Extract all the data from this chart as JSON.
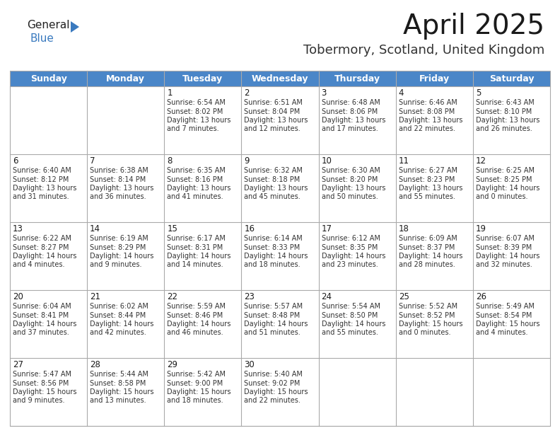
{
  "title": "April 2025",
  "subtitle": "Tobermory, Scotland, United Kingdom",
  "header_color": "#4a86c8",
  "header_text_color": "#ffffff",
  "background_color": "#ffffff",
  "grid_line_color": "#aaaaaa",
  "cell_bg_color": "#ffffff",
  "day_names": [
    "Sunday",
    "Monday",
    "Tuesday",
    "Wednesday",
    "Thursday",
    "Friday",
    "Saturday"
  ],
  "title_fontsize": 28,
  "subtitle_fontsize": 13,
  "header_fontsize": 9,
  "day_num_fontsize": 8.5,
  "cell_fontsize": 7,
  "logo_general_color": "#222222",
  "logo_blue_color": "#3a7abf",
  "logo_triangle_color": "#3a7abf",
  "days": [
    {
      "day": 1,
      "col": 2,
      "row": 0,
      "sunrise": "6:54 AM",
      "sunset": "8:02 PM",
      "daylight": "13 hours and 7 minutes."
    },
    {
      "day": 2,
      "col": 3,
      "row": 0,
      "sunrise": "6:51 AM",
      "sunset": "8:04 PM",
      "daylight": "13 hours and 12 minutes."
    },
    {
      "day": 3,
      "col": 4,
      "row": 0,
      "sunrise": "6:48 AM",
      "sunset": "8:06 PM",
      "daylight": "13 hours and 17 minutes."
    },
    {
      "day": 4,
      "col": 5,
      "row": 0,
      "sunrise": "6:46 AM",
      "sunset": "8:08 PM",
      "daylight": "13 hours and 22 minutes."
    },
    {
      "day": 5,
      "col": 6,
      "row": 0,
      "sunrise": "6:43 AM",
      "sunset": "8:10 PM",
      "daylight": "13 hours and 26 minutes."
    },
    {
      "day": 6,
      "col": 0,
      "row": 1,
      "sunrise": "6:40 AM",
      "sunset": "8:12 PM",
      "daylight": "13 hours and 31 minutes."
    },
    {
      "day": 7,
      "col": 1,
      "row": 1,
      "sunrise": "6:38 AM",
      "sunset": "8:14 PM",
      "daylight": "13 hours and 36 minutes."
    },
    {
      "day": 8,
      "col": 2,
      "row": 1,
      "sunrise": "6:35 AM",
      "sunset": "8:16 PM",
      "daylight": "13 hours and 41 minutes."
    },
    {
      "day": 9,
      "col": 3,
      "row": 1,
      "sunrise": "6:32 AM",
      "sunset": "8:18 PM",
      "daylight": "13 hours and 45 minutes."
    },
    {
      "day": 10,
      "col": 4,
      "row": 1,
      "sunrise": "6:30 AM",
      "sunset": "8:20 PM",
      "daylight": "13 hours and 50 minutes."
    },
    {
      "day": 11,
      "col": 5,
      "row": 1,
      "sunrise": "6:27 AM",
      "sunset": "8:23 PM",
      "daylight": "13 hours and 55 minutes."
    },
    {
      "day": 12,
      "col": 6,
      "row": 1,
      "sunrise": "6:25 AM",
      "sunset": "8:25 PM",
      "daylight": "14 hours and 0 minutes."
    },
    {
      "day": 13,
      "col": 0,
      "row": 2,
      "sunrise": "6:22 AM",
      "sunset": "8:27 PM",
      "daylight": "14 hours and 4 minutes."
    },
    {
      "day": 14,
      "col": 1,
      "row": 2,
      "sunrise": "6:19 AM",
      "sunset": "8:29 PM",
      "daylight": "14 hours and 9 minutes."
    },
    {
      "day": 15,
      "col": 2,
      "row": 2,
      "sunrise": "6:17 AM",
      "sunset": "8:31 PM",
      "daylight": "14 hours and 14 minutes."
    },
    {
      "day": 16,
      "col": 3,
      "row": 2,
      "sunrise": "6:14 AM",
      "sunset": "8:33 PM",
      "daylight": "14 hours and 18 minutes."
    },
    {
      "day": 17,
      "col": 4,
      "row": 2,
      "sunrise": "6:12 AM",
      "sunset": "8:35 PM",
      "daylight": "14 hours and 23 minutes."
    },
    {
      "day": 18,
      "col": 5,
      "row": 2,
      "sunrise": "6:09 AM",
      "sunset": "8:37 PM",
      "daylight": "14 hours and 28 minutes."
    },
    {
      "day": 19,
      "col": 6,
      "row": 2,
      "sunrise": "6:07 AM",
      "sunset": "8:39 PM",
      "daylight": "14 hours and 32 minutes."
    },
    {
      "day": 20,
      "col": 0,
      "row": 3,
      "sunrise": "6:04 AM",
      "sunset": "8:41 PM",
      "daylight": "14 hours and 37 minutes."
    },
    {
      "day": 21,
      "col": 1,
      "row": 3,
      "sunrise": "6:02 AM",
      "sunset": "8:44 PM",
      "daylight": "14 hours and 42 minutes."
    },
    {
      "day": 22,
      "col": 2,
      "row": 3,
      "sunrise": "5:59 AM",
      "sunset": "8:46 PM",
      "daylight": "14 hours and 46 minutes."
    },
    {
      "day": 23,
      "col": 3,
      "row": 3,
      "sunrise": "5:57 AM",
      "sunset": "8:48 PM",
      "daylight": "14 hours and 51 minutes."
    },
    {
      "day": 24,
      "col": 4,
      "row": 3,
      "sunrise": "5:54 AM",
      "sunset": "8:50 PM",
      "daylight": "14 hours and 55 minutes."
    },
    {
      "day": 25,
      "col": 5,
      "row": 3,
      "sunrise": "5:52 AM",
      "sunset": "8:52 PM",
      "daylight": "15 hours and 0 minutes."
    },
    {
      "day": 26,
      "col": 6,
      "row": 3,
      "sunrise": "5:49 AM",
      "sunset": "8:54 PM",
      "daylight": "15 hours and 4 minutes."
    },
    {
      "day": 27,
      "col": 0,
      "row": 4,
      "sunrise": "5:47 AM",
      "sunset": "8:56 PM",
      "daylight": "15 hours and 9 minutes."
    },
    {
      "day": 28,
      "col": 1,
      "row": 4,
      "sunrise": "5:44 AM",
      "sunset": "8:58 PM",
      "daylight": "15 hours and 13 minutes."
    },
    {
      "day": 29,
      "col": 2,
      "row": 4,
      "sunrise": "5:42 AM",
      "sunset": "9:00 PM",
      "daylight": "15 hours and 18 minutes."
    },
    {
      "day": 30,
      "col": 3,
      "row": 4,
      "sunrise": "5:40 AM",
      "sunset": "9:02 PM",
      "daylight": "15 hours and 22 minutes."
    }
  ]
}
